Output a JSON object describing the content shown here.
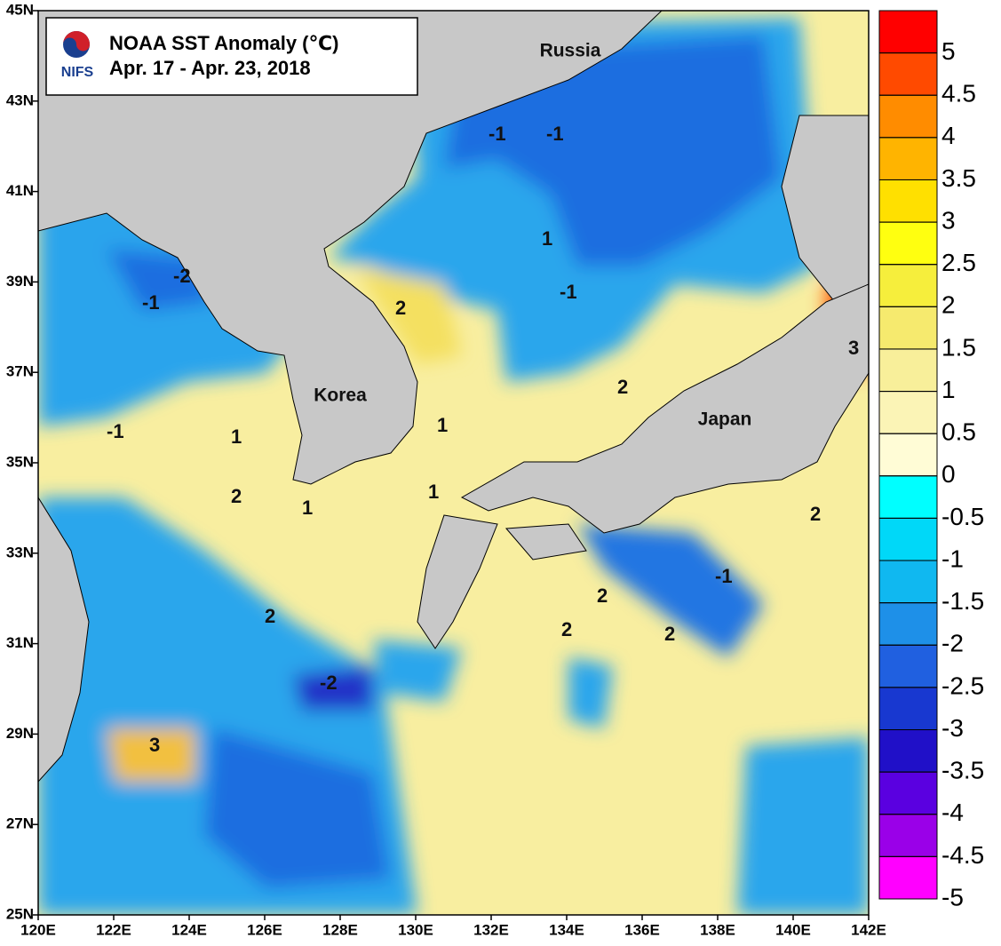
{
  "header": {
    "title": "NOAA SST Anomaly (℃)",
    "period": "Apr. 17 - Apr. 23,  2018",
    "logo": "NIFS"
  },
  "map": {
    "xlim": [
      120,
      142
    ],
    "ylim": [
      25,
      45
    ],
    "xticks": [
      {
        "value": 120,
        "label": "120E"
      },
      {
        "value": 122,
        "label": "122E"
      },
      {
        "value": 124,
        "label": "124E"
      },
      {
        "value": 126,
        "label": "126E"
      },
      {
        "value": 128,
        "label": "128E"
      },
      {
        "value": 130,
        "label": "130E"
      },
      {
        "value": 132,
        "label": "132E"
      },
      {
        "value": 134,
        "label": "134E"
      },
      {
        "value": 136,
        "label": "136E"
      },
      {
        "value": 138,
        "label": "138E"
      },
      {
        "value": 140,
        "label": "140E"
      },
      {
        "value": 142,
        "label": "142E"
      }
    ],
    "yticks": [
      {
        "value": 25,
        "label": "25N"
      },
      {
        "value": 27,
        "label": "27N"
      },
      {
        "value": 29,
        "label": "29N"
      },
      {
        "value": 31,
        "label": "31N"
      },
      {
        "value": 33,
        "label": "33N"
      },
      {
        "value": 35,
        "label": "35N"
      },
      {
        "value": 37,
        "label": "37N"
      },
      {
        "value": 39,
        "label": "39N"
      },
      {
        "value": 41,
        "label": "41N"
      },
      {
        "value": 43,
        "label": "43N"
      },
      {
        "value": 45,
        "label": "45N"
      }
    ],
    "places": [
      "Russia",
      "Korea",
      "Japan"
    ],
    "contour_labels": [
      -1,
      -1,
      1,
      -2,
      -1,
      2,
      -1,
      2,
      1,
      1,
      -1,
      2,
      1,
      1,
      2,
      2,
      2,
      2,
      -1,
      2,
      3,
      3,
      -2
    ]
  },
  "colorbar": {
    "levels": [
      5,
      4.5,
      4,
      3.5,
      3,
      2.5,
      2,
      1.5,
      1,
      0.5,
      0,
      -0.5,
      -1,
      -1.5,
      -2,
      -2.5,
      -3,
      -3.5,
      -4,
      -4.5,
      -5
    ],
    "colors": [
      "#ff0000",
      "#ff4a00",
      "#ff8c00",
      "#ffb400",
      "#ffe000",
      "#ffff10",
      "#f6ee3c",
      "#f6ea6e",
      "#f8ef9a",
      "#fbf4b6",
      "#fffcd6",
      "#00ffff",
      "#00d8f8",
      "#10b8f0",
      "#1e90e8",
      "#2060e0",
      "#1838d0",
      "#2010c8",
      "#5a00e0",
      "#9a00e8",
      "#ff00ff"
    ]
  }
}
